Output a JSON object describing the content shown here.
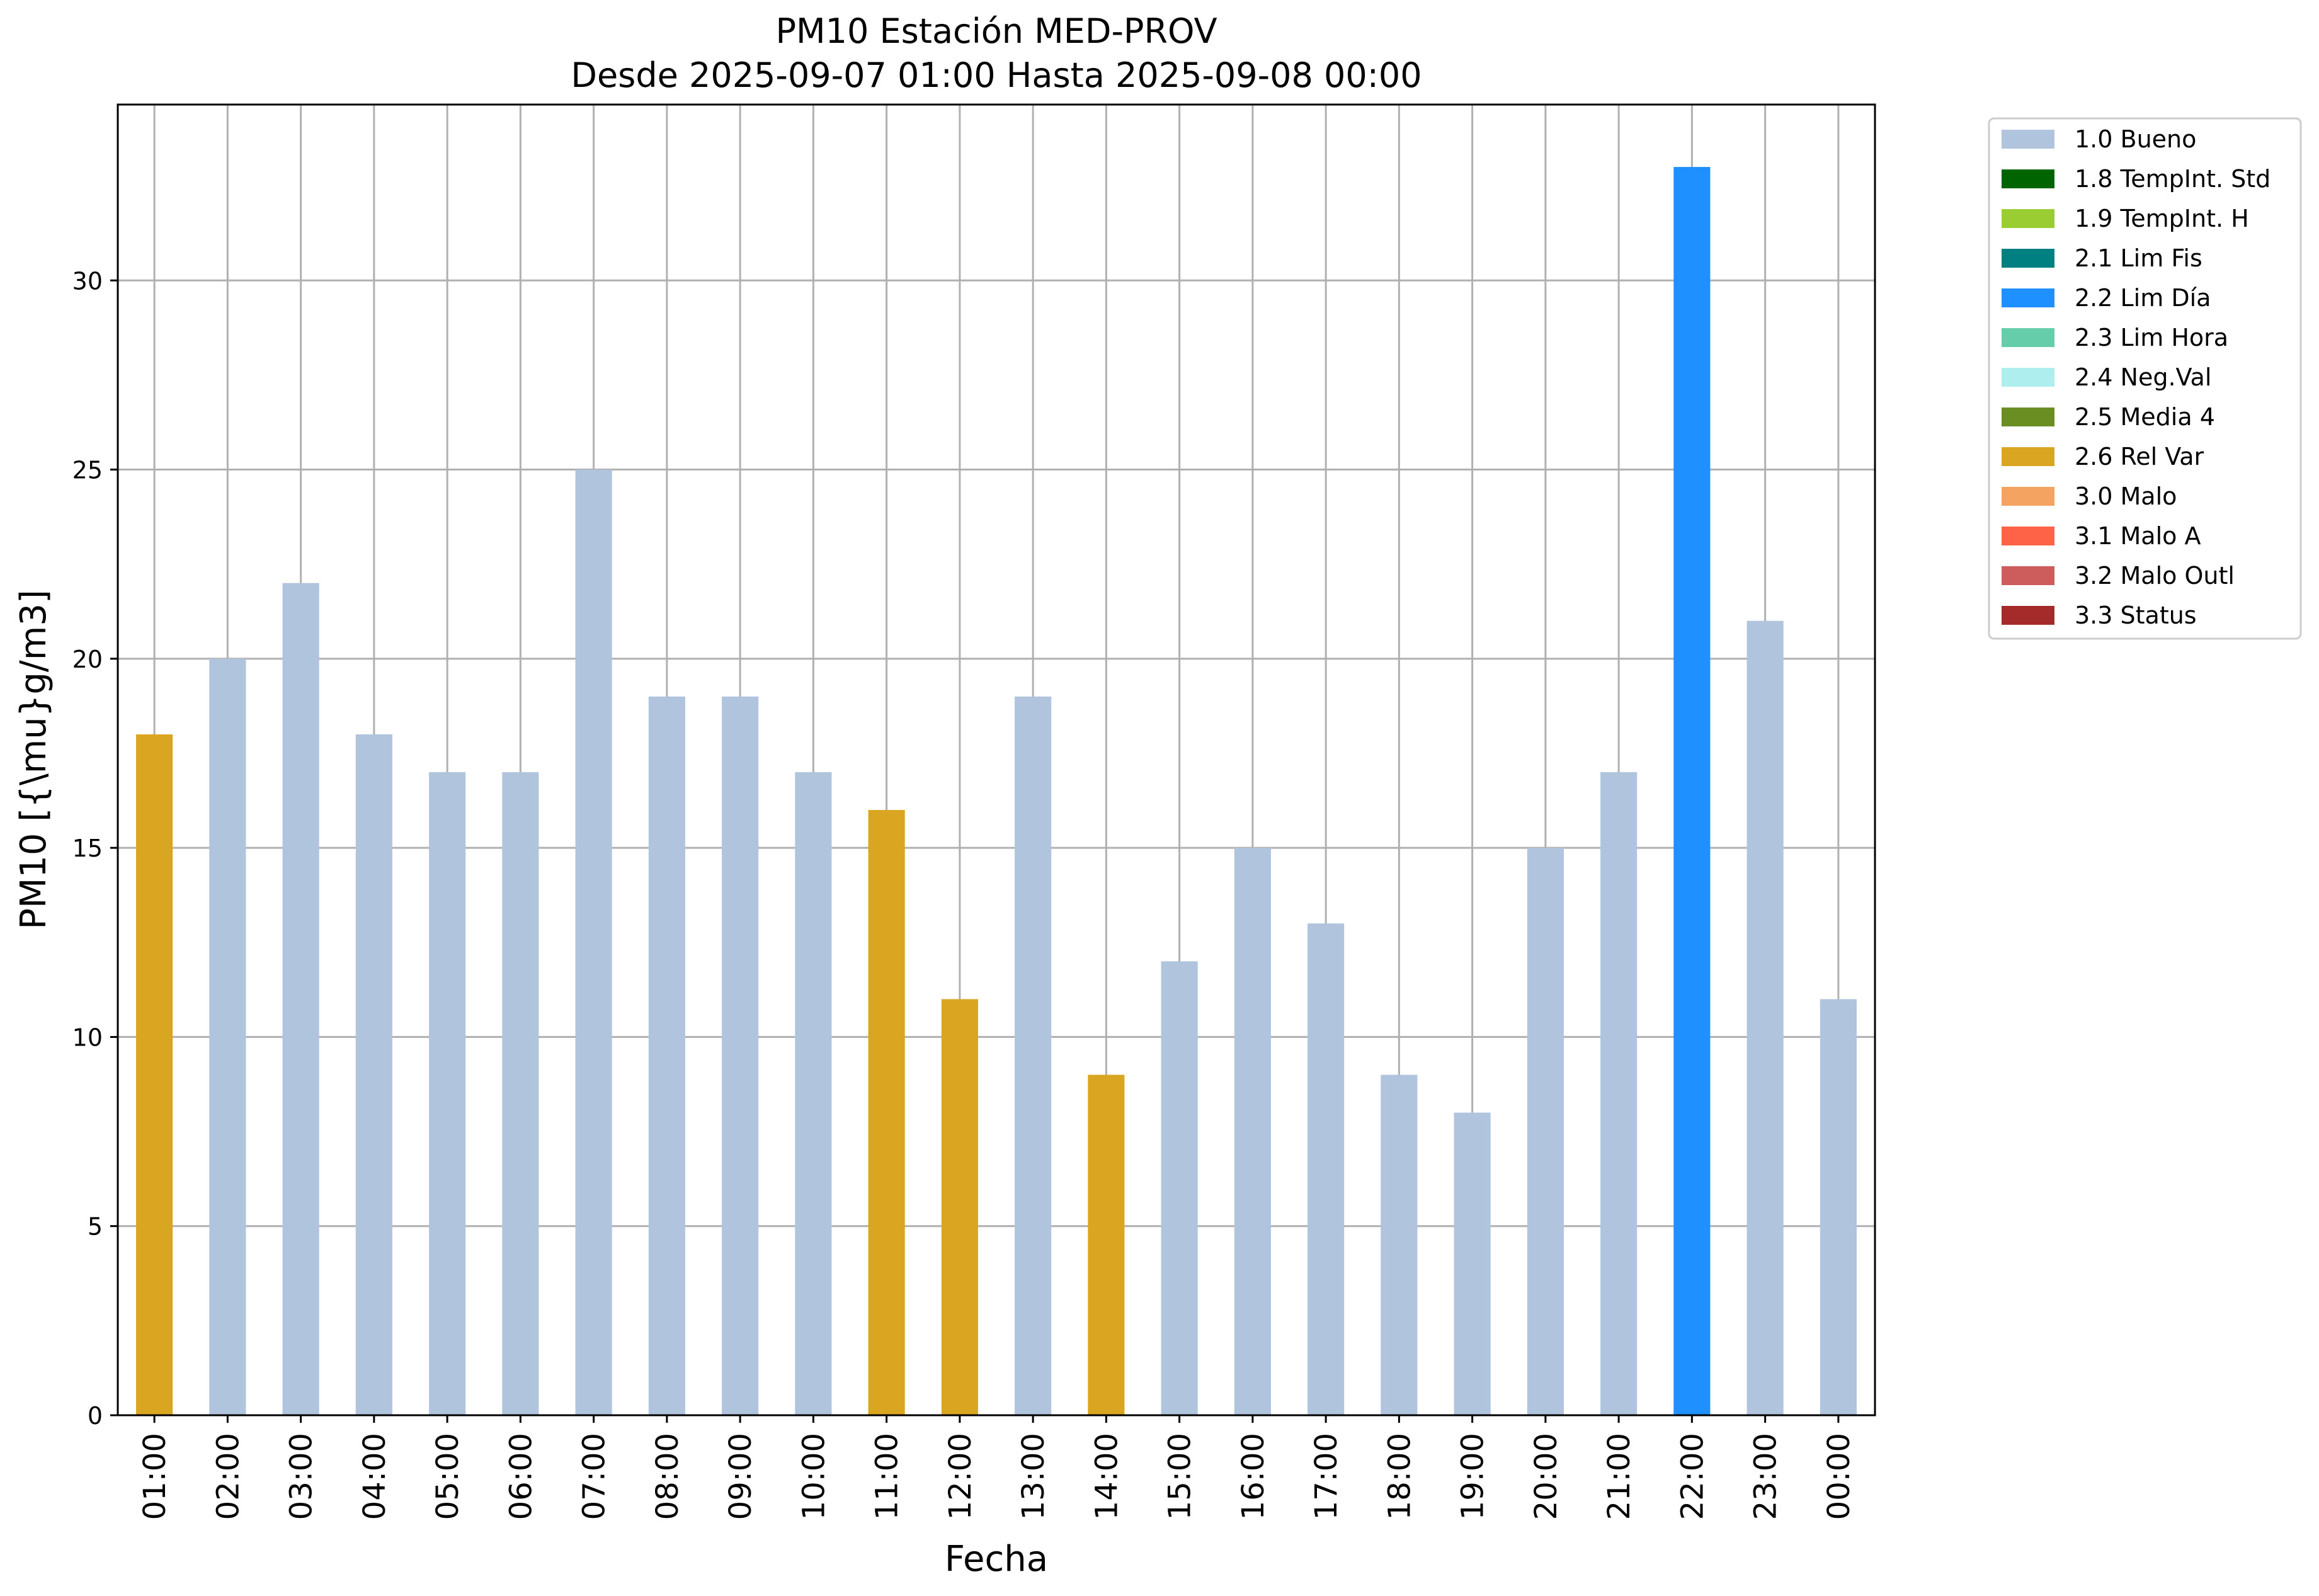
{
  "chart_data": {
    "type": "bar",
    "title": "PM10 Estación MED-PROV",
    "subtitle": "Desde 2025-09-07 01:00 Hasta 2025-09-08 00:00",
    "xlabel": "Fecha",
    "ylabel": "PM10 [{\\mu}g/m3]",
    "ylim": [
      0,
      34.65
    ],
    "yticks": [
      0,
      5,
      10,
      15,
      20,
      25,
      30
    ],
    "grid": true,
    "legend_position": "outside-top-right",
    "categories": [
      "01:00",
      "02:00",
      "03:00",
      "04:00",
      "05:00",
      "06:00",
      "07:00",
      "08:00",
      "09:00",
      "10:00",
      "11:00",
      "12:00",
      "13:00",
      "14:00",
      "15:00",
      "16:00",
      "17:00",
      "18:00",
      "19:00",
      "20:00",
      "21:00",
      "22:00",
      "23:00",
      "00:00"
    ],
    "values": [
      18,
      20,
      22,
      18,
      17,
      17,
      25,
      19,
      19,
      17,
      16,
      11,
      19,
      9,
      12,
      15,
      13,
      9,
      8,
      15,
      17,
      33,
      21,
      11
    ],
    "flags": [
      "2.6 Rel Var",
      "1.0 Bueno",
      "1.0 Bueno",
      "1.0 Bueno",
      "1.0 Bueno",
      "1.0 Bueno",
      "1.0 Bueno",
      "1.0 Bueno",
      "1.0 Bueno",
      "1.0 Bueno",
      "2.6 Rel Var",
      "2.6 Rel Var",
      "1.0 Bueno",
      "2.6 Rel Var",
      "1.0 Bueno",
      "1.0 Bueno",
      "1.0 Bueno",
      "1.0 Bueno",
      "1.0 Bueno",
      "1.0 Bueno",
      "1.0 Bueno",
      "2.2 Lim Día",
      "1.0 Bueno",
      "1.0 Bueno"
    ],
    "legend": [
      {
        "label": "1.0 Bueno",
        "color": "#b0c4de"
      },
      {
        "label": "1.8 TempInt. Std",
        "color": "#006400"
      },
      {
        "label": "1.9 TempInt. H",
        "color": "#9acd32"
      },
      {
        "label": "2.1 Lim Fis",
        "color": "#008080"
      },
      {
        "label": "2.2 Lim Día",
        "color": "#1e90ff"
      },
      {
        "label": "2.3 Lim Hora",
        "color": "#66cdaa"
      },
      {
        "label": "2.4 Neg.Val",
        "color": "#afeeee"
      },
      {
        "label": "2.5 Media 4",
        "color": "#6b8e23"
      },
      {
        "label": "2.6 Rel Var",
        "color": "#daa520"
      },
      {
        "label": "3.0 Malo",
        "color": "#f4a460"
      },
      {
        "label": "3.1 Malo A",
        "color": "#ff6347"
      },
      {
        "label": "3.2 Malo Outl",
        "color": "#cd5c5c"
      },
      {
        "label": "3.3 Status",
        "color": "#a52a2a"
      }
    ],
    "grid_color": "#b0b0b0"
  }
}
